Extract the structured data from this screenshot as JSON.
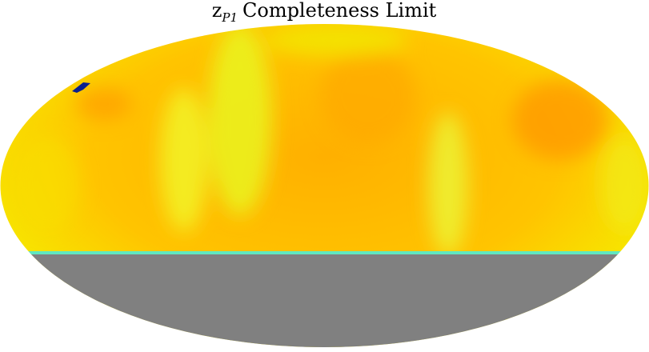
{
  "title": {
    "main": "z",
    "subscript": "P1",
    "rest": "Completeness Limit"
  }
}
